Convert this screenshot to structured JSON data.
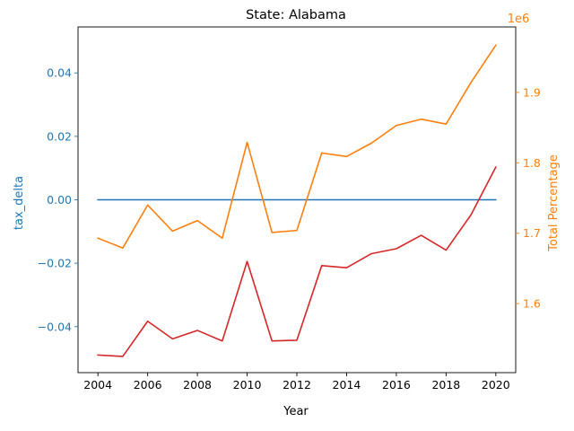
{
  "chart_data": {
    "type": "line",
    "title": "State: Alabama",
    "xlabel": "Year",
    "ylabel_left": "tax_delta",
    "ylabel_right": "Total Percentage",
    "right_offset_text": "1e6",
    "x": [
      2004,
      2005,
      2006,
      2007,
      2008,
      2009,
      2010,
      2011,
      2012,
      2013,
      2014,
      2015,
      2016,
      2017,
      2018,
      2019,
      2020
    ],
    "xlim": [
      2003.2,
      2020.8
    ],
    "xticks": [
      2004,
      2006,
      2008,
      2010,
      2012,
      2014,
      2016,
      2018,
      2020
    ],
    "ylim_left": [
      -0.0545,
      0.0545
    ],
    "yticks_left": [
      -0.04,
      -0.02,
      0.0,
      0.02,
      0.04
    ],
    "ytick_labels_left": [
      "−0.04",
      "−0.02",
      "0.00",
      "0.02",
      "0.04"
    ],
    "ylim_right": [
      1.502,
      1.993
    ],
    "yticks_right": [
      1.6,
      1.7,
      1.8,
      1.9
    ],
    "ytick_labels_right": [
      "1.6",
      "1.7",
      "1.8",
      "1.9"
    ],
    "grid": false,
    "series": [
      {
        "axis": "left",
        "color": "#1f77b4",
        "values": [
          0.0,
          0.0,
          0.0,
          0.0,
          0.0,
          0.0,
          0.0,
          0.0,
          0.0,
          0.0,
          0.0,
          0.0,
          0.0,
          0.0,
          0.0,
          0.0,
          0.0
        ]
      },
      {
        "axis": "right",
        "color": "#ff7f0e",
        "values": [
          1.693,
          1.679,
          1.74,
          1.703,
          1.718,
          1.693,
          1.829,
          1.701,
          1.704,
          1.814,
          1.809,
          1.828,
          1.853,
          1.862,
          1.855,
          1.914,
          1.967
        ]
      },
      {
        "axis": "right",
        "color": "#d62728",
        "values": [
          1.527,
          1.525,
          1.575,
          1.55,
          1.562,
          1.547,
          1.66,
          1.547,
          1.548,
          1.654,
          1.651,
          1.671,
          1.678,
          1.697,
          1.676,
          1.726,
          1.794
        ]
      }
    ],
    "colors": {
      "left_axis": "#1f77b4",
      "right_axis": "#ff7f0e",
      "text": "#000000"
    }
  }
}
